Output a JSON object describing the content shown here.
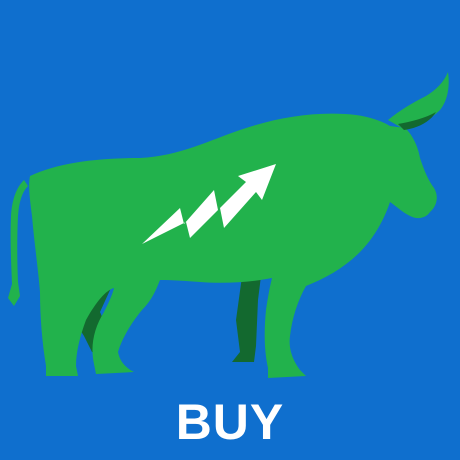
{
  "label": {
    "text": "BUY"
  },
  "colors": {
    "background": "#0f6fce",
    "bull_body": "#22b24c",
    "bull_shadow": "#13692f",
    "arrow": "#ffffff",
    "label_text": "#ffffff"
  },
  "icons": {
    "main": "bull-icon",
    "overlay": "zigzag-up-arrow-icon"
  }
}
